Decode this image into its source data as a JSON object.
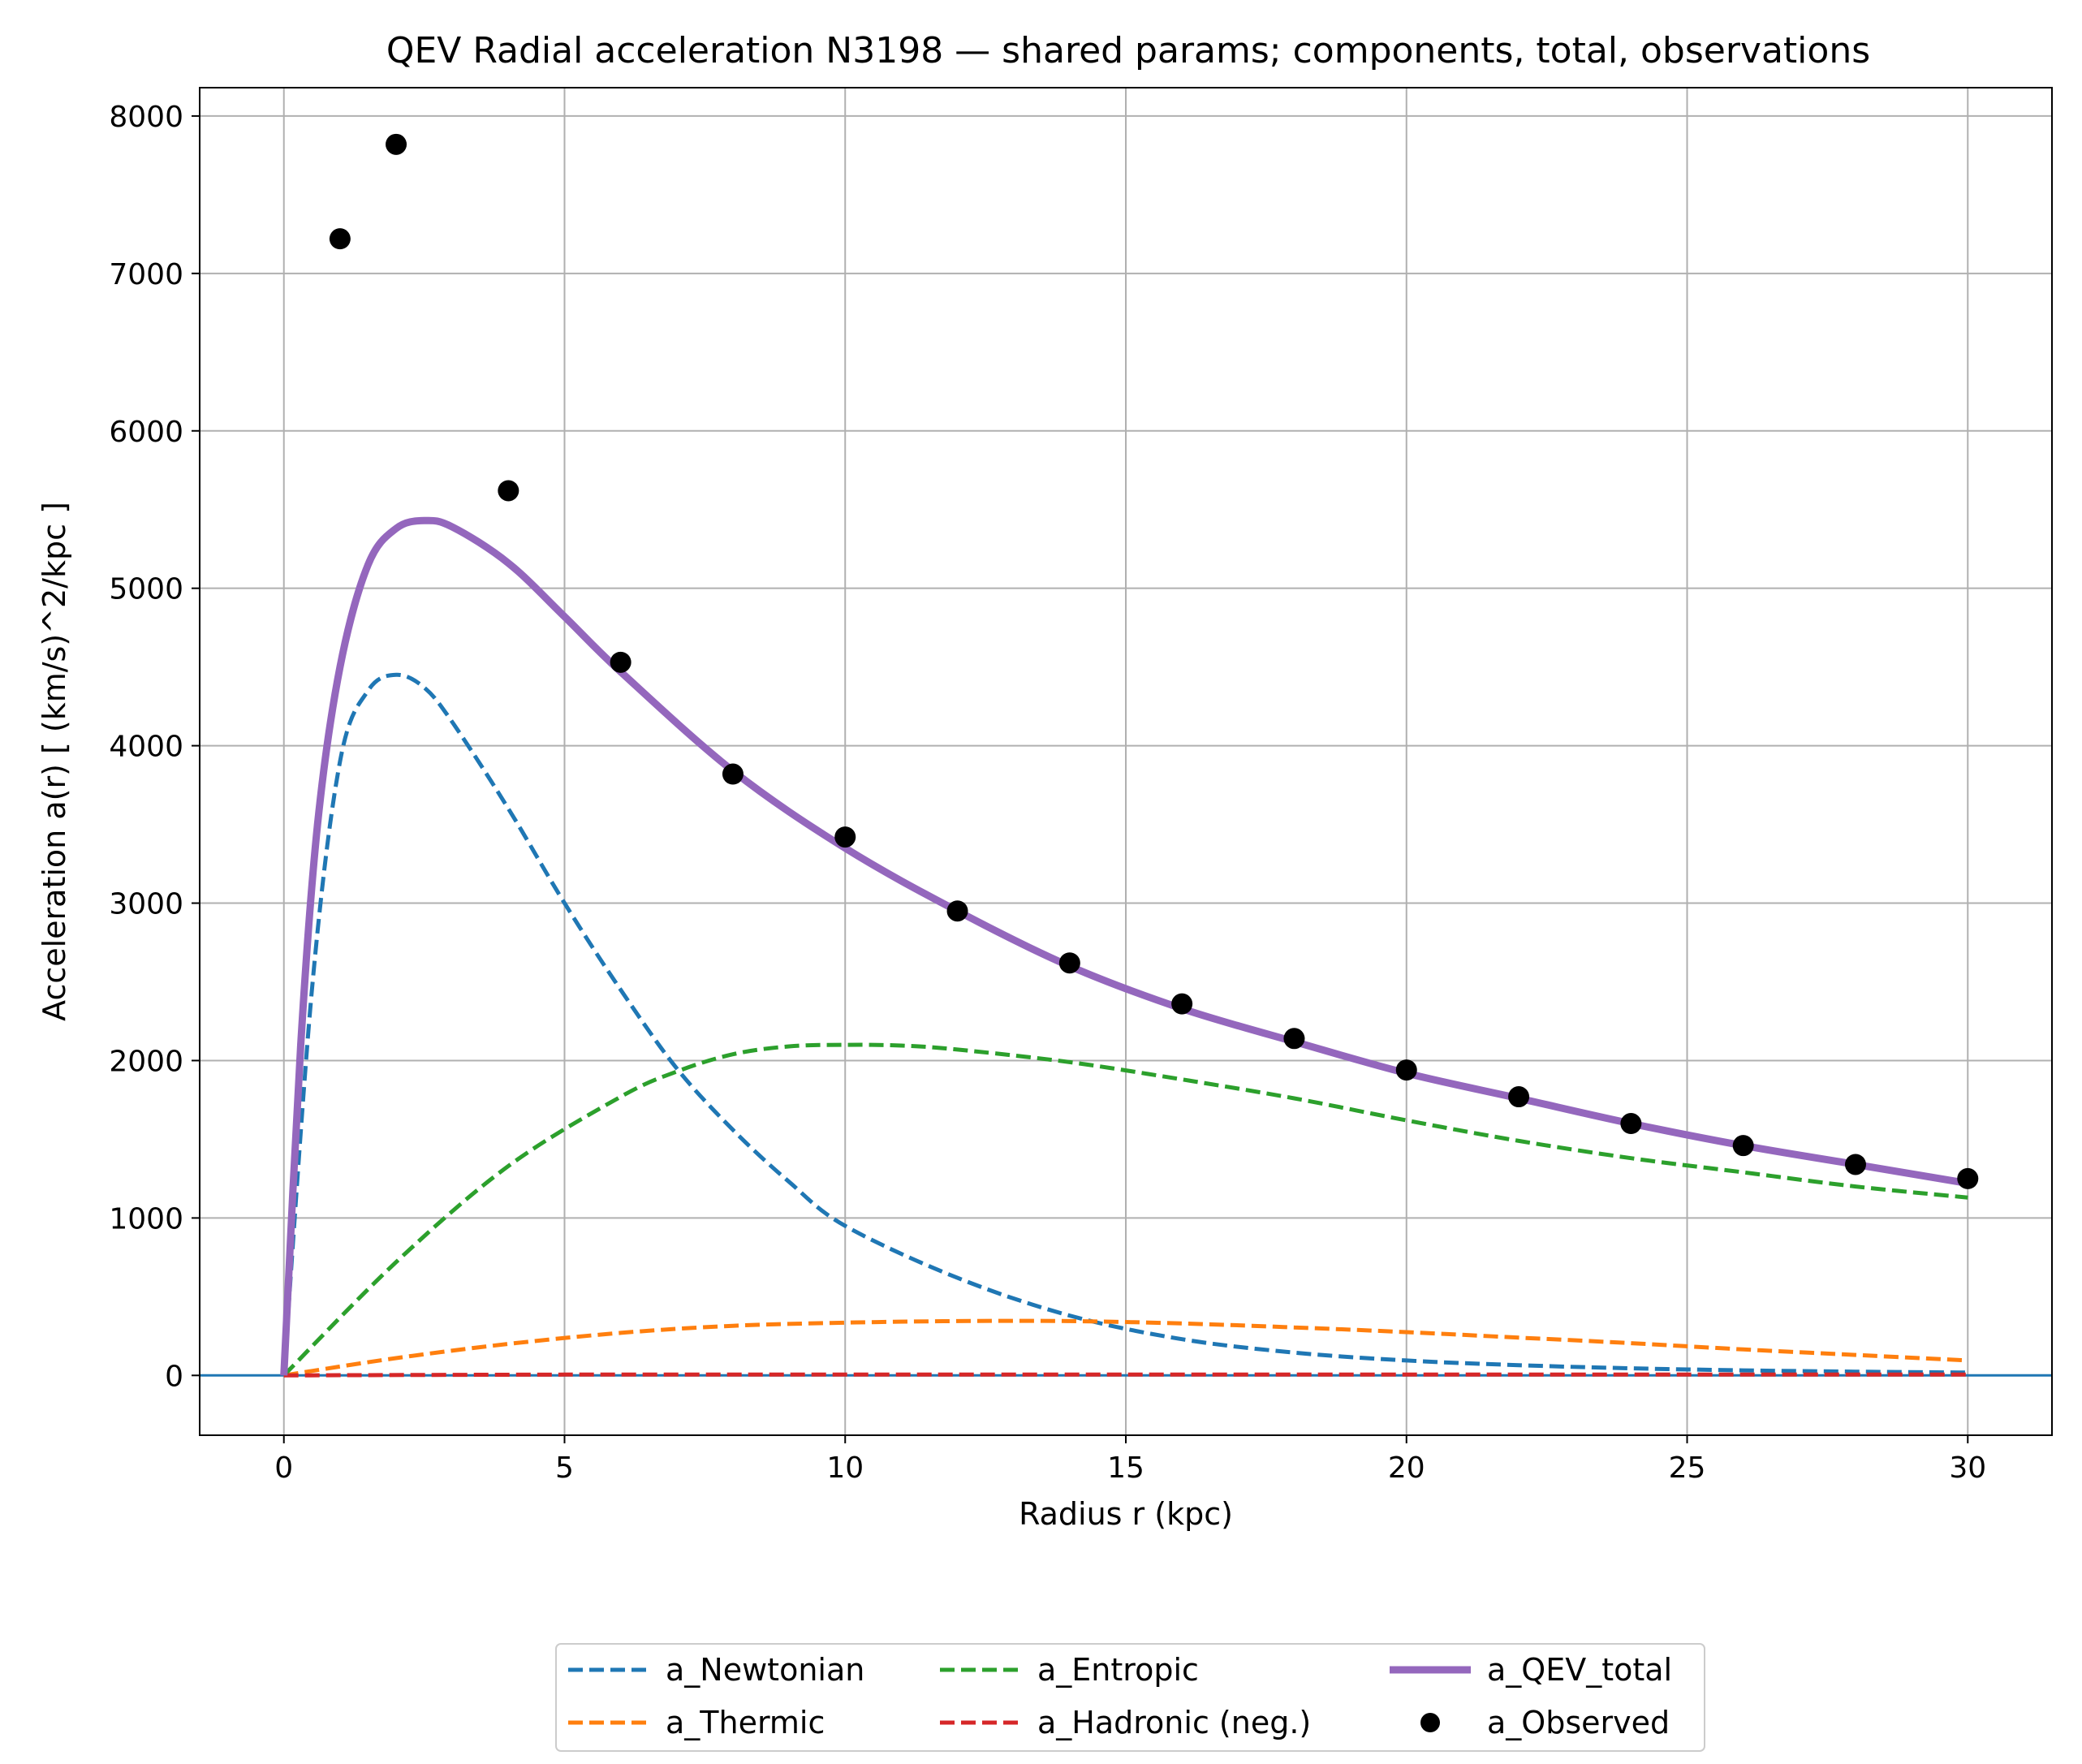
{
  "chart_data": {
    "type": "line",
    "title": "QEV Radial acceleration N3198 — shared params; components, total, observations",
    "xlabel": "Radius r (kpc)",
    "ylabel": "Acceleration a(r) [ (km/s)^2/kpc ]",
    "xlim": [
      -1.5,
      31.5
    ],
    "ylim": [
      -380,
      8180
    ],
    "xticks": [
      0,
      5,
      10,
      15,
      20,
      25,
      30
    ],
    "yticks": [
      0,
      1000,
      2000,
      3000,
      4000,
      5000,
      6000,
      7000,
      8000
    ],
    "grid": true,
    "zero_line": true,
    "legend_position": "bottom-center, below plot",
    "series": [
      {
        "name": "a_Newtonian",
        "style": "dashed",
        "color": "#1f77b4",
        "x": [
          0,
          0.5,
          1,
          1.5,
          2,
          2.5,
          3,
          4,
          5,
          6,
          7,
          8,
          9,
          10,
          12,
          14,
          16,
          18,
          20,
          22,
          24,
          26,
          28,
          30
        ],
        "y": [
          0,
          2450,
          3900,
          4350,
          4450,
          4370,
          4150,
          3600,
          3000,
          2450,
          1950,
          1560,
          1230,
          950,
          620,
          380,
          230,
          145,
          95,
          65,
          45,
          32,
          24,
          18
        ]
      },
      {
        "name": "a_Thermic",
        "style": "dashed",
        "color": "#ff7f0e",
        "x": [
          0,
          2,
          4,
          6,
          8,
          10,
          12,
          14,
          16,
          18,
          20,
          22,
          24,
          26,
          28,
          30
        ],
        "y": [
          0,
          110,
          200,
          270,
          315,
          335,
          345,
          345,
          330,
          305,
          275,
          240,
          205,
          165,
          130,
          95
        ]
      },
      {
        "name": "a_Entropic",
        "style": "dashed",
        "color": "#2ca02c",
        "x": [
          0,
          2,
          4,
          6,
          7,
          8,
          9,
          10,
          11,
          12,
          14,
          16,
          18,
          20,
          22,
          24,
          26,
          28,
          30
        ],
        "y": [
          0,
          720,
          1330,
          1770,
          1930,
          2040,
          2090,
          2100,
          2095,
          2070,
          1990,
          1880,
          1760,
          1620,
          1490,
          1380,
          1290,
          1200,
          1130
        ]
      },
      {
        "name": "a_Hadronic (neg.)",
        "style": "dashed",
        "color": "#d62728",
        "x": [
          0,
          5,
          10,
          15,
          20,
          25,
          30
        ],
        "y": [
          0,
          5,
          5,
          5,
          5,
          5,
          5
        ]
      },
      {
        "name": "a_QEV_total",
        "style": "solid",
        "color": "#9467bd",
        "x": [
          0,
          0.3,
          0.6,
          1,
          1.5,
          2,
          2.5,
          3,
          4,
          5,
          6,
          8,
          10,
          12,
          14,
          16,
          18,
          20,
          22,
          24,
          26,
          28,
          30
        ],
        "y": [
          0,
          2100,
          3500,
          4500,
          5150,
          5380,
          5430,
          5390,
          5160,
          4820,
          4470,
          3840,
          3350,
          2950,
          2600,
          2330,
          2120,
          1920,
          1760,
          1600,
          1460,
          1340,
          1220
        ]
      },
      {
        "name": "a_Observed",
        "style": "markers",
        "color": "#000000",
        "x": [
          1,
          2,
          4,
          6,
          8,
          10,
          12,
          14,
          16,
          18,
          20,
          22,
          24,
          26,
          28,
          30
        ],
        "y": [
          7220,
          7820,
          5620,
          4530,
          3820,
          3420,
          2950,
          2620,
          2360,
          2140,
          1940,
          1770,
          1600,
          1460,
          1340,
          1250
        ]
      }
    ],
    "legend": [
      {
        "label": "a_Newtonian",
        "series": 0
      },
      {
        "label": "a_Thermic",
        "series": 1
      },
      {
        "label": "a_Entropic",
        "series": 2
      },
      {
        "label": "a_Hadronic (neg.)",
        "series": 3
      },
      {
        "label": "a_QEV_total",
        "series": 4
      },
      {
        "label": "a_Observed",
        "series": 5
      }
    ]
  }
}
